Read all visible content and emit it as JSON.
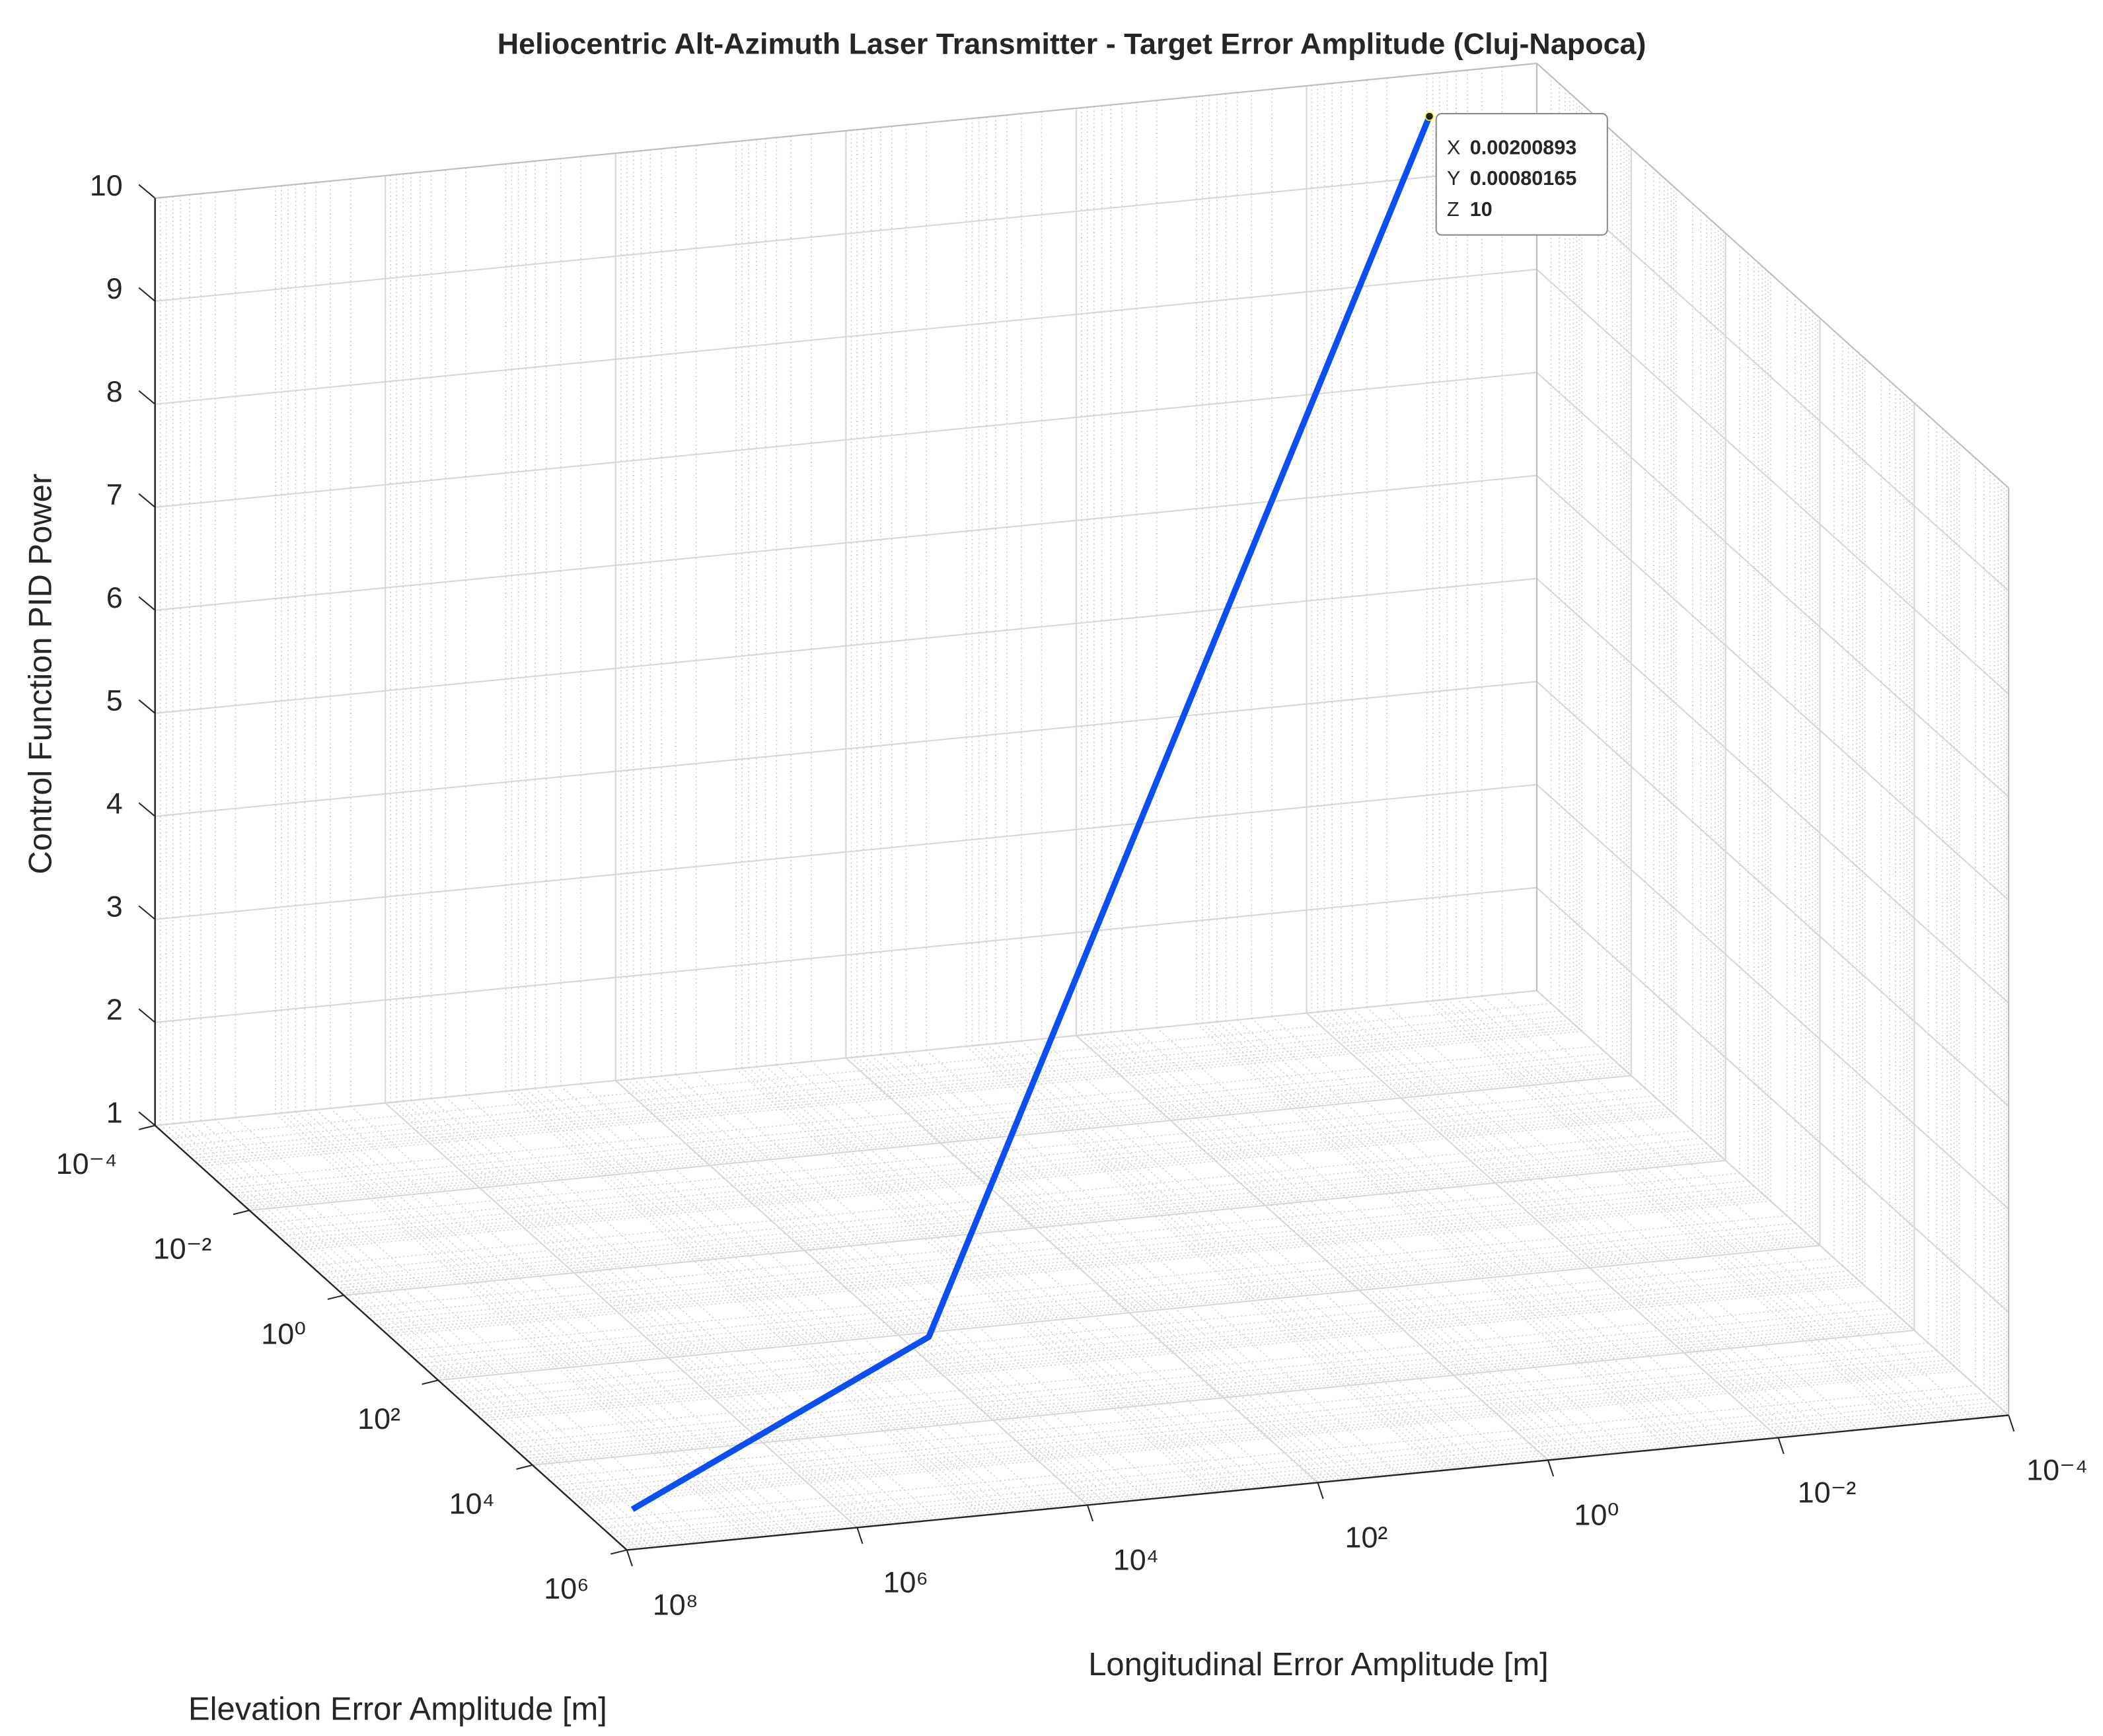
{
  "chart_data": {
    "type": "line3d",
    "title": "Heliocentric Alt-Azimuth Laser Transmitter - Target Error Amplitude (Cluj-Napoca)",
    "xlabel": "Longitudinal Error Amplitude [m]",
    "ylabel": "Elevation Error Amplitude [m]",
    "zlabel": "Control Function PID Power",
    "xscale": "log",
    "yscale": "log",
    "grid": true,
    "minor_grid": true,
    "xlim": [
      0.0001,
      100000000
    ],
    "xticks": [
      {
        "value": 0.0001,
        "label": "10⁻⁴"
      },
      {
        "value": 0.01,
        "label": "10⁻²"
      },
      {
        "value": 1,
        "label": "10⁰"
      },
      {
        "value": 100,
        "label": "10²"
      },
      {
        "value": 10000,
        "label": "10⁴"
      },
      {
        "value": 1000000,
        "label": "10⁶"
      },
      {
        "value": 100000000,
        "label": "10⁸"
      }
    ],
    "ylim": [
      0.0001,
      1000000
    ],
    "yticks": [
      {
        "value": 0.0001,
        "label": "10⁻⁴"
      },
      {
        "value": 0.01,
        "label": "10⁻²"
      },
      {
        "value": 1,
        "label": "10⁰"
      },
      {
        "value": 100,
        "label": "10²"
      },
      {
        "value": 10000,
        "label": "10⁴"
      },
      {
        "value": 1000000,
        "label": "10⁶"
      }
    ],
    "zlim": [
      1,
      10
    ],
    "zticks": [
      1,
      2,
      3,
      4,
      5,
      6,
      7,
      8,
      9,
      10
    ],
    "series": [
      {
        "color": "#0b4ff2",
        "x": [
          40000000,
          6000,
          0.00200893
        ],
        "y": [
          140000,
          125,
          0.00080165
        ],
        "z": [
          1,
          1,
          10
        ]
      }
    ],
    "datatip": {
      "labels": [
        "X",
        "Y",
        "Z"
      ],
      "values": [
        0.00200893,
        0.00080165,
        10
      ]
    }
  }
}
